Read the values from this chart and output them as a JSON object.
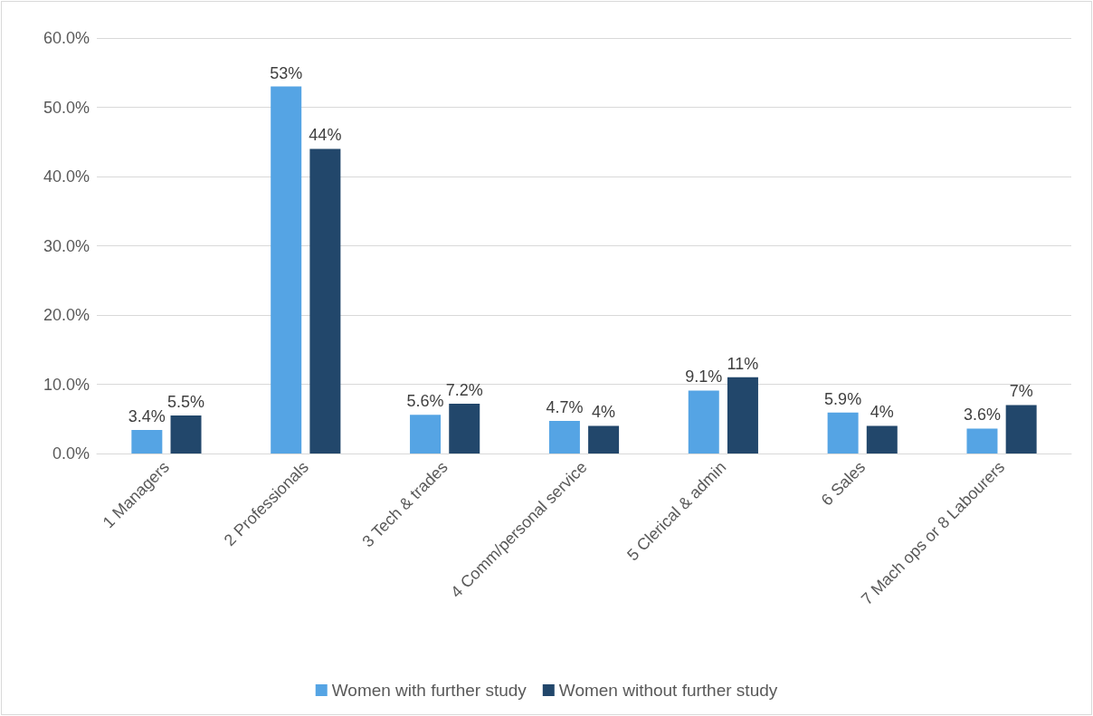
{
  "chart_data": {
    "type": "bar",
    "categories": [
      "1 Managers",
      "2 Professionals",
      "3 Tech & trades",
      "4 Comm/personal service",
      "5 Clerical & admin",
      "6 Sales",
      "7 Mach ops or 8 Labourers"
    ],
    "series": [
      {
        "name": "Women with further study",
        "color": "#55a4e4",
        "values": [
          3.4,
          53,
          5.6,
          4.7,
          9.1,
          5.9,
          3.6
        ],
        "value_labels": [
          "3.4%",
          "53%",
          "5.6%",
          "4.7%",
          "9.1%",
          "5.9%",
          "3.6%"
        ]
      },
      {
        "name": "Women without further study",
        "color": "#22476b",
        "values": [
          5.5,
          44,
          7.2,
          4,
          11,
          4,
          7
        ],
        "value_labels": [
          "5.5%",
          "44%",
          "7.2%",
          "4%",
          "11%",
          "4%",
          "7%"
        ]
      }
    ],
    "ylim": [
      0,
      60
    ],
    "yticks": [
      {
        "value": 0,
        "label": "0.0%"
      },
      {
        "value": 10,
        "label": "10.0%"
      },
      {
        "value": 20,
        "label": "20.0%"
      },
      {
        "value": 30,
        "label": "30.0%"
      },
      {
        "value": 40,
        "label": "40.0%"
      },
      {
        "value": 50,
        "label": "50.0%"
      },
      {
        "value": 60,
        "label": "60.0%"
      }
    ],
    "grid": "y",
    "legend": "bottom"
  }
}
